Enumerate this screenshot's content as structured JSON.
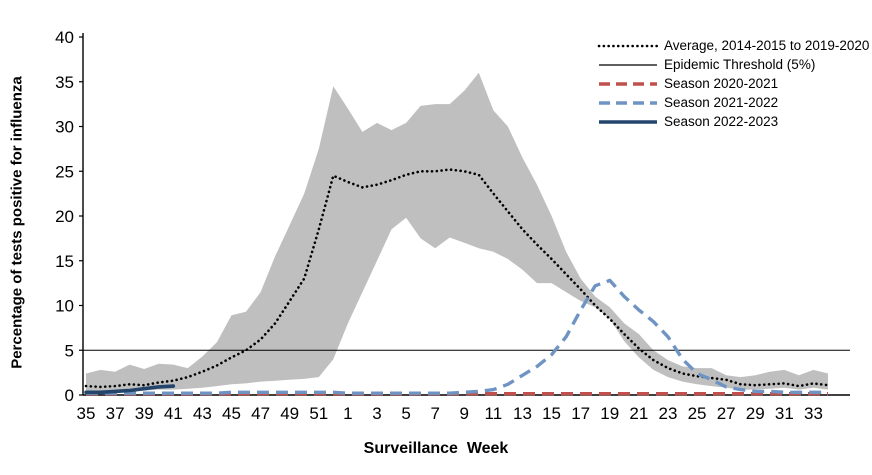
{
  "chart_data": {
    "type": "line",
    "title": "",
    "xlabel": "Surveillance  Week",
    "ylabel": "Percentage of tests positive for influenza",
    "ylim": [
      0,
      40
    ],
    "ytick_step": 5,
    "xtick_every": 2,
    "grid": false,
    "legend_position": "top-right-inside",
    "categories": [
      "35",
      "36",
      "37",
      "38",
      "39",
      "40",
      "41",
      "42",
      "43",
      "44",
      "45",
      "46",
      "47",
      "48",
      "49",
      "50",
      "51",
      "52",
      "1",
      "2",
      "3",
      "4",
      "5",
      "6",
      "7",
      "8",
      "9",
      "10",
      "11",
      "12",
      "13",
      "14",
      "15",
      "16",
      "17",
      "18",
      "19",
      "20",
      "21",
      "22",
      "23",
      "24",
      "25",
      "26",
      "27",
      "28",
      "29",
      "30",
      "31",
      "32",
      "33",
      "34"
    ],
    "band": {
      "name": "Range 2014-2015 to 2019-2020",
      "color": "#bfbfbf",
      "upper": [
        2.4,
        2.8,
        2.6,
        3.4,
        2.9,
        3.5,
        3.4,
        3.0,
        4.3,
        5.9,
        8.9,
        9.3,
        11.5,
        15.5,
        19.0,
        22.5,
        27.5,
        34.5,
        32.0,
        29.4,
        30.4,
        29.6,
        30.4,
        32.3,
        32.5,
        32.5,
        34.0,
        36.0,
        31.8,
        30.0,
        26.5,
        23.5,
        20.0,
        16.0,
        13.0,
        11.0,
        9.8,
        8.0,
        6.8,
        5.0,
        3.9,
        3.2,
        3.0,
        3.0,
        2.2,
        2.0,
        2.2,
        2.6,
        2.8,
        2.2,
        2.8,
        2.4
      ],
      "lower": [
        0.3,
        0.4,
        0.4,
        0.5,
        0.5,
        0.6,
        0.6,
        0.7,
        0.8,
        1.0,
        1.2,
        1.3,
        1.5,
        1.6,
        1.7,
        1.8,
        2.0,
        4.0,
        8.0,
        11.5,
        15.0,
        18.5,
        19.8,
        17.5,
        16.4,
        17.6,
        17.0,
        16.4,
        16.0,
        15.2,
        14.0,
        12.5,
        12.5,
        11.5,
        10.5,
        9.8,
        8.5,
        6.0,
        4.2,
        2.8,
        2.0,
        1.5,
        1.2,
        1.0,
        0.8,
        0.6,
        0.6,
        0.7,
        0.8,
        0.6,
        0.8,
        0.6
      ]
    },
    "threshold": {
      "label": "Epidemic Threshold (5%)",
      "value": 5,
      "color": "#000000"
    },
    "series": [
      {
        "name": "Average, 2014-2015 to 2019-2020",
        "style": "dotted",
        "color": "#000000",
        "values": [
          1.0,
          0.9,
          1.0,
          1.2,
          1.1,
          1.4,
          1.6,
          2.0,
          2.6,
          3.3,
          4.2,
          5.0,
          6.2,
          8.0,
          10.5,
          13.0,
          18.5,
          24.5,
          23.8,
          23.2,
          23.5,
          24.0,
          24.6,
          25.0,
          25.0,
          25.2,
          25.0,
          24.6,
          22.5,
          20.5,
          18.5,
          16.8,
          15.2,
          13.5,
          11.8,
          10.0,
          8.5,
          6.8,
          5.2,
          3.9,
          3.0,
          2.4,
          2.1,
          1.9,
          1.7,
          1.2,
          1.1,
          1.2,
          1.3,
          1.0,
          1.3,
          1.1
        ]
      },
      {
        "name": "Season 2020-2021",
        "style": "dashed",
        "color": "#c0504d",
        "values": [
          0.15,
          0.15,
          0.15,
          0.15,
          0.15,
          0.15,
          0.15,
          0.15,
          0.15,
          0.15,
          0.15,
          0.15,
          0.15,
          0.15,
          0.15,
          0.15,
          0.15,
          0.15,
          0.15,
          0.15,
          0.15,
          0.15,
          0.15,
          0.15,
          0.15,
          0.15,
          0.15,
          0.15,
          0.15,
          0.15,
          0.15,
          0.15,
          0.15,
          0.15,
          0.15,
          0.15,
          0.15,
          0.15,
          0.15,
          0.15,
          0.15,
          0.15,
          0.15,
          0.15,
          0.15,
          0.15,
          0.15,
          0.15,
          0.15,
          0.15,
          0.15,
          0.15
        ]
      },
      {
        "name": "Season 2021-2022",
        "style": "dashed",
        "color": "#6f94c4",
        "values": [
          0.2,
          0.2,
          0.2,
          0.2,
          0.2,
          0.2,
          0.2,
          0.2,
          0.2,
          0.2,
          0.3,
          0.3,
          0.3,
          0.3,
          0.3,
          0.3,
          0.3,
          0.3,
          0.2,
          0.2,
          0.2,
          0.2,
          0.2,
          0.2,
          0.2,
          0.2,
          0.3,
          0.4,
          0.6,
          1.2,
          2.2,
          3.2,
          4.5,
          6.5,
          9.5,
          12.2,
          12.8,
          11.0,
          9.5,
          8.2,
          6.5,
          4.0,
          2.4,
          1.7,
          0.9,
          0.6,
          0.4,
          0.4,
          0.3,
          0.3,
          0.3,
          0.3
        ]
      },
      {
        "name": "Season 2022-2023",
        "style": "solid",
        "color": "#24456b",
        "values": [
          0.3,
          0.3,
          0.4,
          0.5,
          0.7,
          0.9,
          1.0,
          null,
          null,
          null,
          null,
          null,
          null,
          null,
          null,
          null,
          null,
          null,
          null,
          null,
          null,
          null,
          null,
          null,
          null,
          null,
          null,
          null,
          null,
          null,
          null,
          null,
          null,
          null,
          null,
          null,
          null,
          null,
          null,
          null,
          null,
          null,
          null,
          null,
          null,
          null,
          null,
          null,
          null,
          null,
          null,
          null
        ]
      }
    ],
    "yticks": [
      0,
      5,
      10,
      15,
      20,
      25,
      30,
      35,
      40
    ]
  },
  "legend": {
    "items": [
      {
        "label": "Average, 2014-2015 to 2019-2020",
        "style": "dotted",
        "color": "#000000"
      },
      {
        "label": "Epidemic Threshold (5%)",
        "style": "thin",
        "color": "#000000"
      },
      {
        "label": "Season 2020-2021",
        "style": "dashed",
        "color": "#c0504d"
      },
      {
        "label": "Season 2021-2022",
        "style": "dashed",
        "color": "#6f94c4"
      },
      {
        "label": "Season 2022-2023",
        "style": "solid",
        "color": "#24456b"
      }
    ]
  }
}
